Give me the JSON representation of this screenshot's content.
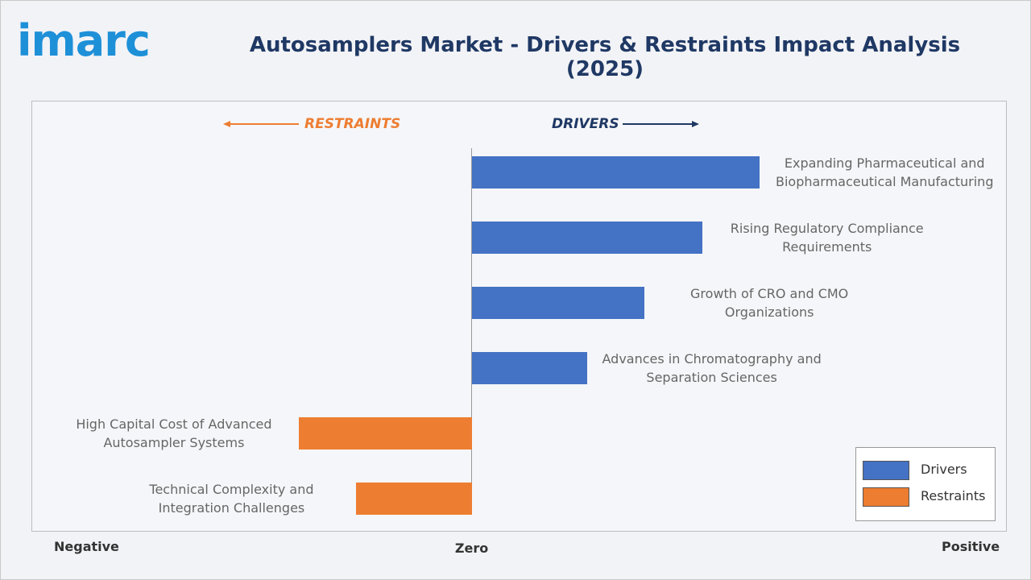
{
  "brand": "imarc",
  "chart_data": {
    "type": "diverging_bar",
    "title": "Autosamplers Market - Drivers & Restraints Impact Analysis (2025)",
    "annotations": {
      "left": "RESTRAINTS",
      "right": "DRIVERS"
    },
    "categories": [
      "Expanding Pharmaceutical and Biopharmaceutical Manufacturing",
      "Rising Regulatory Compliance Requirements",
      "Growth of CRO and CMO Organizations",
      "Advances in Chromatography and Separation Sciences",
      "High Capital Cost of Advanced Autosampler Systems",
      "Technical Complexity and Integration Challenges"
    ],
    "series": [
      {
        "name": "Drivers",
        "color": "#4472c4",
        "values": [
          5,
          4,
          3,
          2,
          null,
          null
        ]
      },
      {
        "name": "Restraints",
        "color": "#ed7d31",
        "values": [
          null,
          null,
          null,
          null,
          -3,
          -2
        ]
      }
    ],
    "xlim": [
      -7.64,
      9.26
    ],
    "xticks": [
      {
        "value": 0,
        "label": "Zero"
      }
    ],
    "x_end_labels": [
      "Negative",
      "Positive"
    ],
    "legend": "bottom-right"
  }
}
